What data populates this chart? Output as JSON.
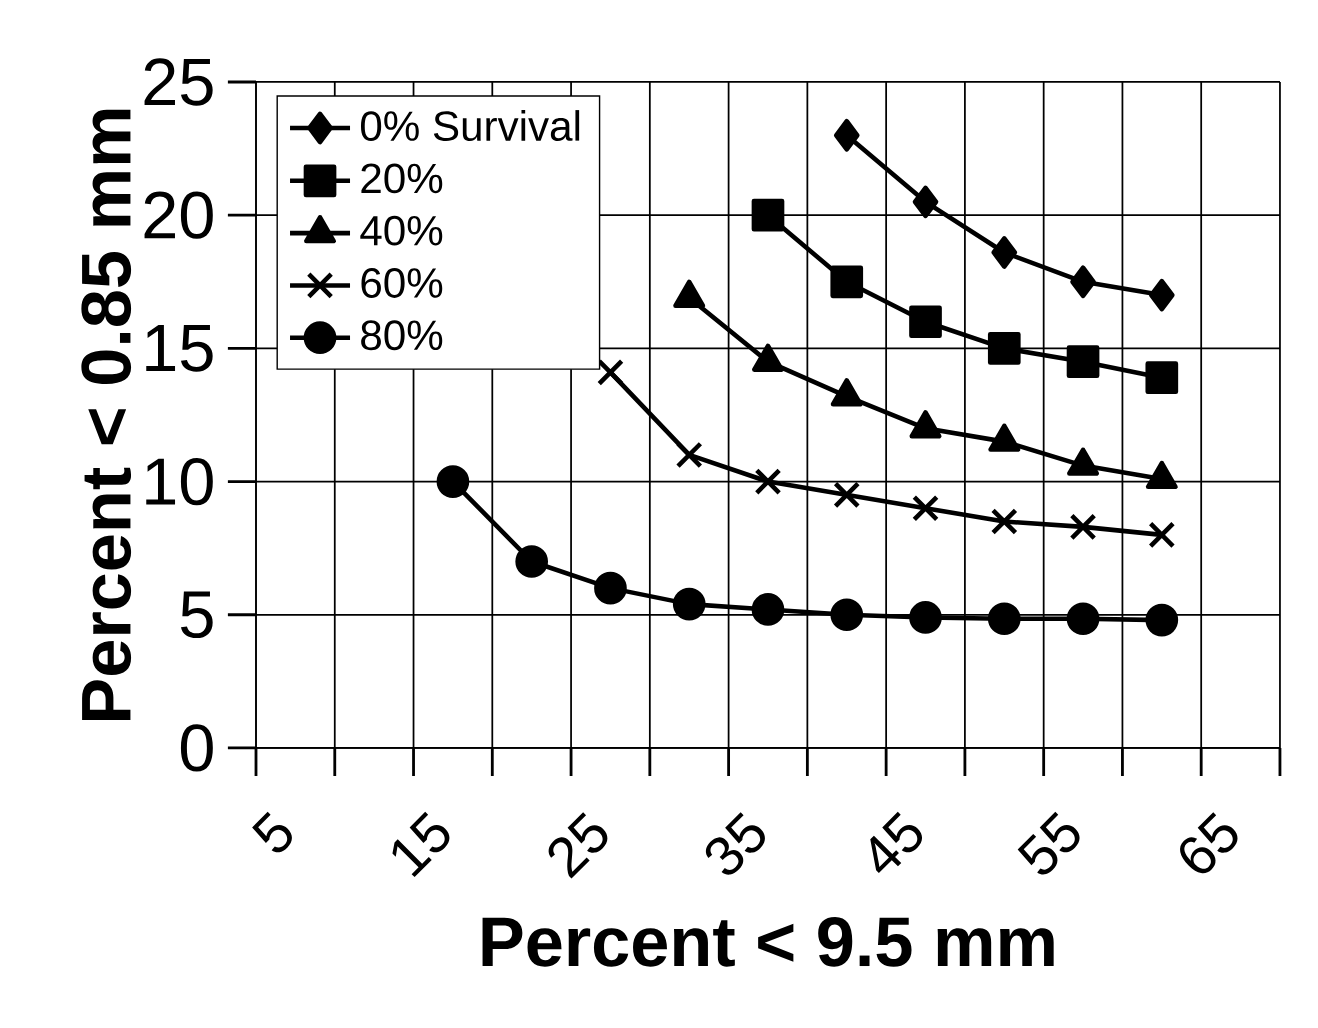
{
  "chart_data": {
    "type": "line",
    "xlabel": "Percent < 9.5 mm",
    "ylabel": "Percent < 0.85 mm",
    "xlim": [
      5,
      70
    ],
    "ylim": [
      0,
      25
    ],
    "xticks": [
      5,
      {
        "value": 10,
        "label": null
      },
      15,
      {
        "value": 20,
        "label": null
      },
      25,
      {
        "value": 30,
        "label": null
      },
      35,
      {
        "value": 40,
        "label": null
      },
      45,
      {
        "value": 50,
        "label": null
      },
      55,
      {
        "value": 60,
        "label": null
      },
      65,
      {
        "value": 70,
        "label": null
      }
    ],
    "yticks": [
      0,
      5,
      10,
      15,
      20,
      25
    ],
    "grid": true,
    "legend": "top left",
    "line_style": "solid",
    "series": [
      {
        "name": "0% Survival",
        "color": "#000000",
        "marker": "diamond",
        "x": [
          42.5,
          47.5,
          52.5,
          57.5,
          62.5
        ],
        "values": [
          23,
          20.5,
          18.6,
          17.5,
          17
        ]
      },
      {
        "name": "20%",
        "color": "#000000",
        "marker": "square",
        "x": [
          37.5,
          42.5,
          47.5,
          52.5,
          57.5,
          62.5
        ],
        "values": [
          20,
          17.5,
          16,
          15,
          14.5,
          13.9
        ]
      },
      {
        "name": "40%",
        "color": "#000000",
        "marker": "triangle",
        "x": [
          32.5,
          37.5,
          42.5,
          47.5,
          52.5,
          57.5,
          62.5
        ],
        "values": [
          16.9,
          14.5,
          13.2,
          12,
          11.5,
          10.6,
          10.1
        ]
      },
      {
        "name": "60%",
        "color": "#000000",
        "marker": "cross",
        "x": [
          27.5,
          32.5,
          37.5,
          42.5,
          47.5,
          52.5,
          57.5,
          62.5
        ],
        "values": [
          14.1,
          11,
          10,
          9.5,
          9,
          8.5,
          8.3,
          8
        ]
      },
      {
        "name": "80%",
        "color": "#000000",
        "marker": "circle",
        "x": [
          17.5,
          22.5,
          27.5,
          32.5,
          37.5,
          42.5,
          47.5,
          52.5,
          57.5,
          62.5
        ],
        "values": [
          10,
          7,
          6,
          5.4,
          5.2,
          5,
          4.9,
          4.85,
          4.85,
          4.8
        ]
      }
    ]
  }
}
